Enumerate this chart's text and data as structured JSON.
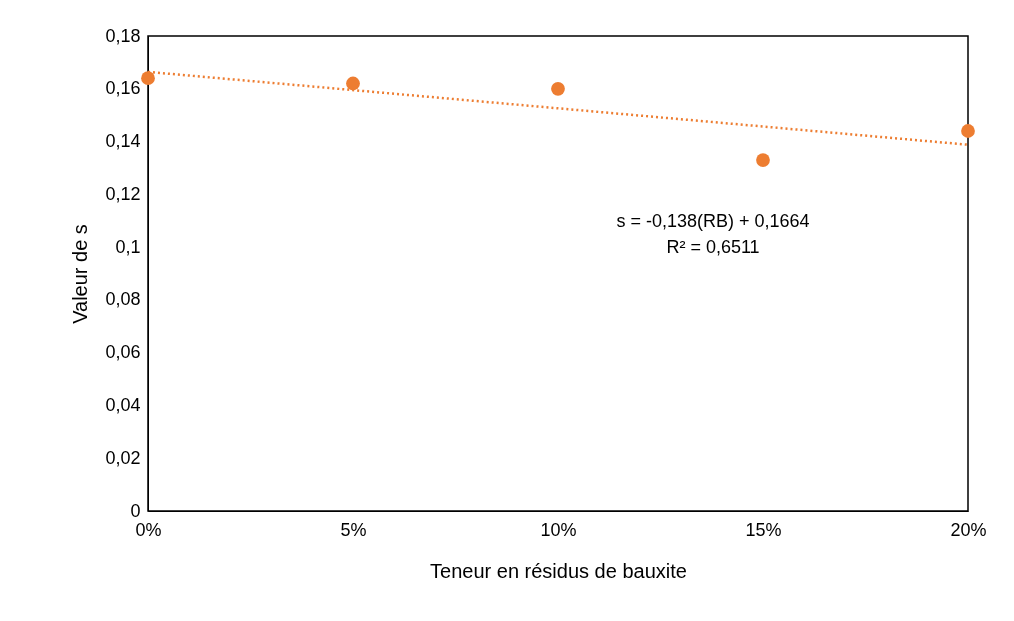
{
  "chart_data": {
    "type": "scatter",
    "xlabel": "Teneur en résidus de bauxite",
    "ylabel": "Valeur de s",
    "x": [
      0,
      0.05,
      0.1,
      0.15,
      0.2
    ],
    "series": [
      {
        "type": "scatter",
        "color": "#ed7d31",
        "marker": "circle",
        "values": [
          0.164,
          0.162,
          0.16,
          0.133,
          0.144
        ]
      },
      {
        "type": "line",
        "color": "#ed7d31",
        "line_style": "dotted",
        "x": [
          0,
          0.2
        ],
        "values": [
          0.1664,
          0.1388
        ]
      }
    ],
    "xlim": [
      0,
      0.2
    ],
    "xticks": [
      {
        "value": 0,
        "label": "0%"
      },
      {
        "value": 0.05,
        "label": "5%"
      },
      {
        "value": 0.1,
        "label": "10%"
      },
      {
        "value": 0.15,
        "label": "15%"
      },
      {
        "value": 0.2,
        "label": "20%"
      }
    ],
    "ylim": [
      0,
      0.18
    ],
    "yticks": [
      0,
      {
        "value": 0.02,
        "label": "0,02"
      },
      {
        "value": 0.04,
        "label": "0,04"
      },
      {
        "value": 0.06,
        "label": "0,06"
      },
      {
        "value": 0.08,
        "label": "0,08"
      },
      {
        "value": 0.1,
        "label": "0,1"
      },
      {
        "value": 0.12,
        "label": "0,12"
      },
      {
        "value": 0.14,
        "label": "0,14"
      },
      {
        "value": 0.16,
        "label": "0,16"
      },
      {
        "value": 0.18,
        "label": "0,18"
      }
    ],
    "annotations": [
      "s = -0,138(RB) + 0,1664",
      "R² = 0,6511"
    ],
    "grid": false
  }
}
